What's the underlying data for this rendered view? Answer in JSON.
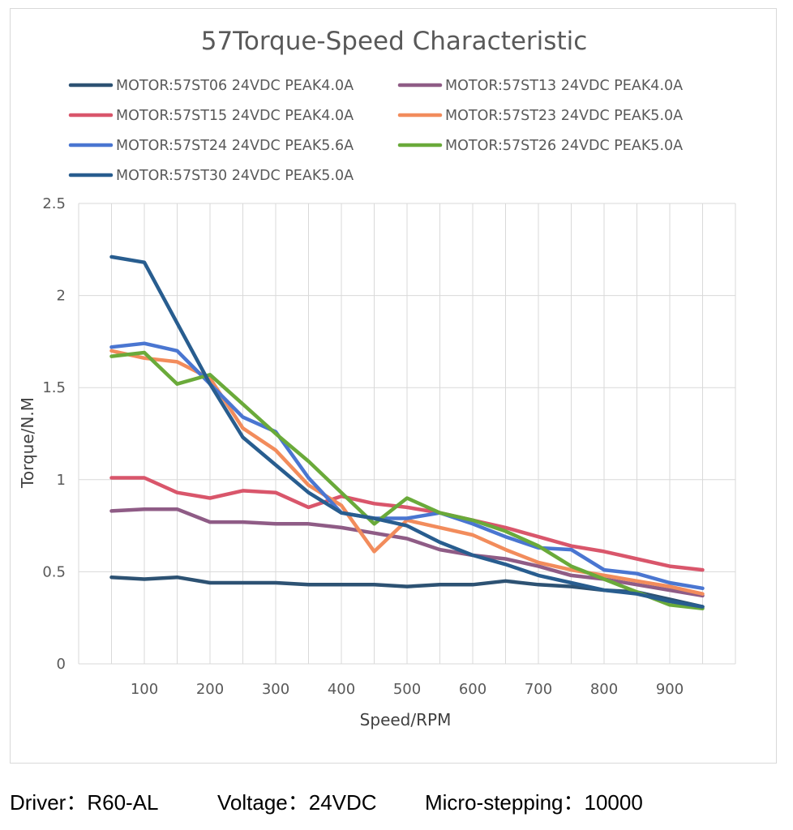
{
  "chart_data": {
    "type": "line",
    "title": "57Torque-Speed Characteristic",
    "xlabel": "Speed/RPM",
    "ylabel": "Torque/N.M",
    "ylim": [
      0,
      2.5
    ],
    "yticks": [
      "0",
      "0.5",
      "1",
      "1.5",
      "2",
      "2.5"
    ],
    "xticks": [
      "100",
      "200",
      "300",
      "400",
      "500",
      "600",
      "700",
      "800",
      "900"
    ],
    "xtick_values": [
      100,
      200,
      300,
      400,
      500,
      600,
      700,
      800,
      900
    ],
    "x": [
      50,
      100,
      150,
      200,
      250,
      300,
      350,
      400,
      450,
      500,
      550,
      600,
      650,
      700,
      750,
      800,
      850,
      900,
      950
    ],
    "grid": true,
    "legend": "top",
    "series": [
      {
        "name": "MOTOR:57ST06 24VDC PEAK4.0A",
        "color": "#2d5273",
        "values": [
          0.47,
          0.46,
          0.47,
          0.44,
          0.44,
          0.44,
          0.43,
          0.43,
          0.43,
          0.42,
          0.43,
          0.43,
          0.45,
          0.43,
          0.42,
          0.4,
          0.39,
          0.35,
          0.31
        ]
      },
      {
        "name": "MOTOR:57ST13 24VDC PEAK4.0A",
        "color": "#8f5c86",
        "values": [
          0.83,
          0.84,
          0.84,
          0.77,
          0.77,
          0.76,
          0.76,
          0.74,
          0.71,
          0.68,
          0.62,
          0.59,
          0.57,
          0.53,
          0.48,
          0.46,
          0.43,
          0.4,
          0.37
        ]
      },
      {
        "name": "MOTOR:57ST15 24VDC PEAK4.0A",
        "color": "#d9566b",
        "values": [
          1.01,
          1.01,
          0.93,
          0.9,
          0.94,
          0.93,
          0.85,
          0.91,
          0.87,
          0.85,
          0.82,
          0.78,
          0.74,
          0.69,
          0.64,
          0.61,
          0.57,
          0.53,
          0.51
        ]
      },
      {
        "name": "MOTOR:57ST23 24VDC PEAK5.0A",
        "color": "#f28c5c",
        "values": [
          1.7,
          1.66,
          1.64,
          1.55,
          1.28,
          1.16,
          0.97,
          0.86,
          0.61,
          0.78,
          0.74,
          0.7,
          0.62,
          0.55,
          0.51,
          0.48,
          0.45,
          0.42,
          0.38
        ]
      },
      {
        "name": "MOTOR:57ST24 24VDC PEAK5.6A",
        "color": "#4a76d1",
        "values": [
          1.72,
          1.74,
          1.7,
          1.52,
          1.34,
          1.26,
          1.01,
          0.82,
          0.79,
          0.79,
          0.82,
          0.76,
          0.69,
          0.63,
          0.62,
          0.51,
          0.49,
          0.44,
          0.41
        ]
      },
      {
        "name": "MOTOR:57ST26 24VDC PEAK5.0A",
        "color": "#6aaa3a",
        "values": [
          1.67,
          1.69,
          1.52,
          1.57,
          1.41,
          1.25,
          1.1,
          0.93,
          0.76,
          0.9,
          0.82,
          0.78,
          0.72,
          0.64,
          0.53,
          0.46,
          0.39,
          0.32,
          0.3
        ]
      },
      {
        "name": "MOTOR:57ST30 24VDC PEAK5.0A",
        "color": "#285d8f",
        "values": [
          2.21,
          2.18,
          1.85,
          1.52,
          1.23,
          1.08,
          0.93,
          0.82,
          0.79,
          0.75,
          0.66,
          0.59,
          0.54,
          0.48,
          0.44,
          0.4,
          0.38,
          0.34,
          0.31
        ]
      }
    ]
  },
  "footer": {
    "driver": "Driver：R60-AL",
    "voltage": "Voltage：24VDC",
    "microstepping": "Micro-stepping：10000"
  }
}
